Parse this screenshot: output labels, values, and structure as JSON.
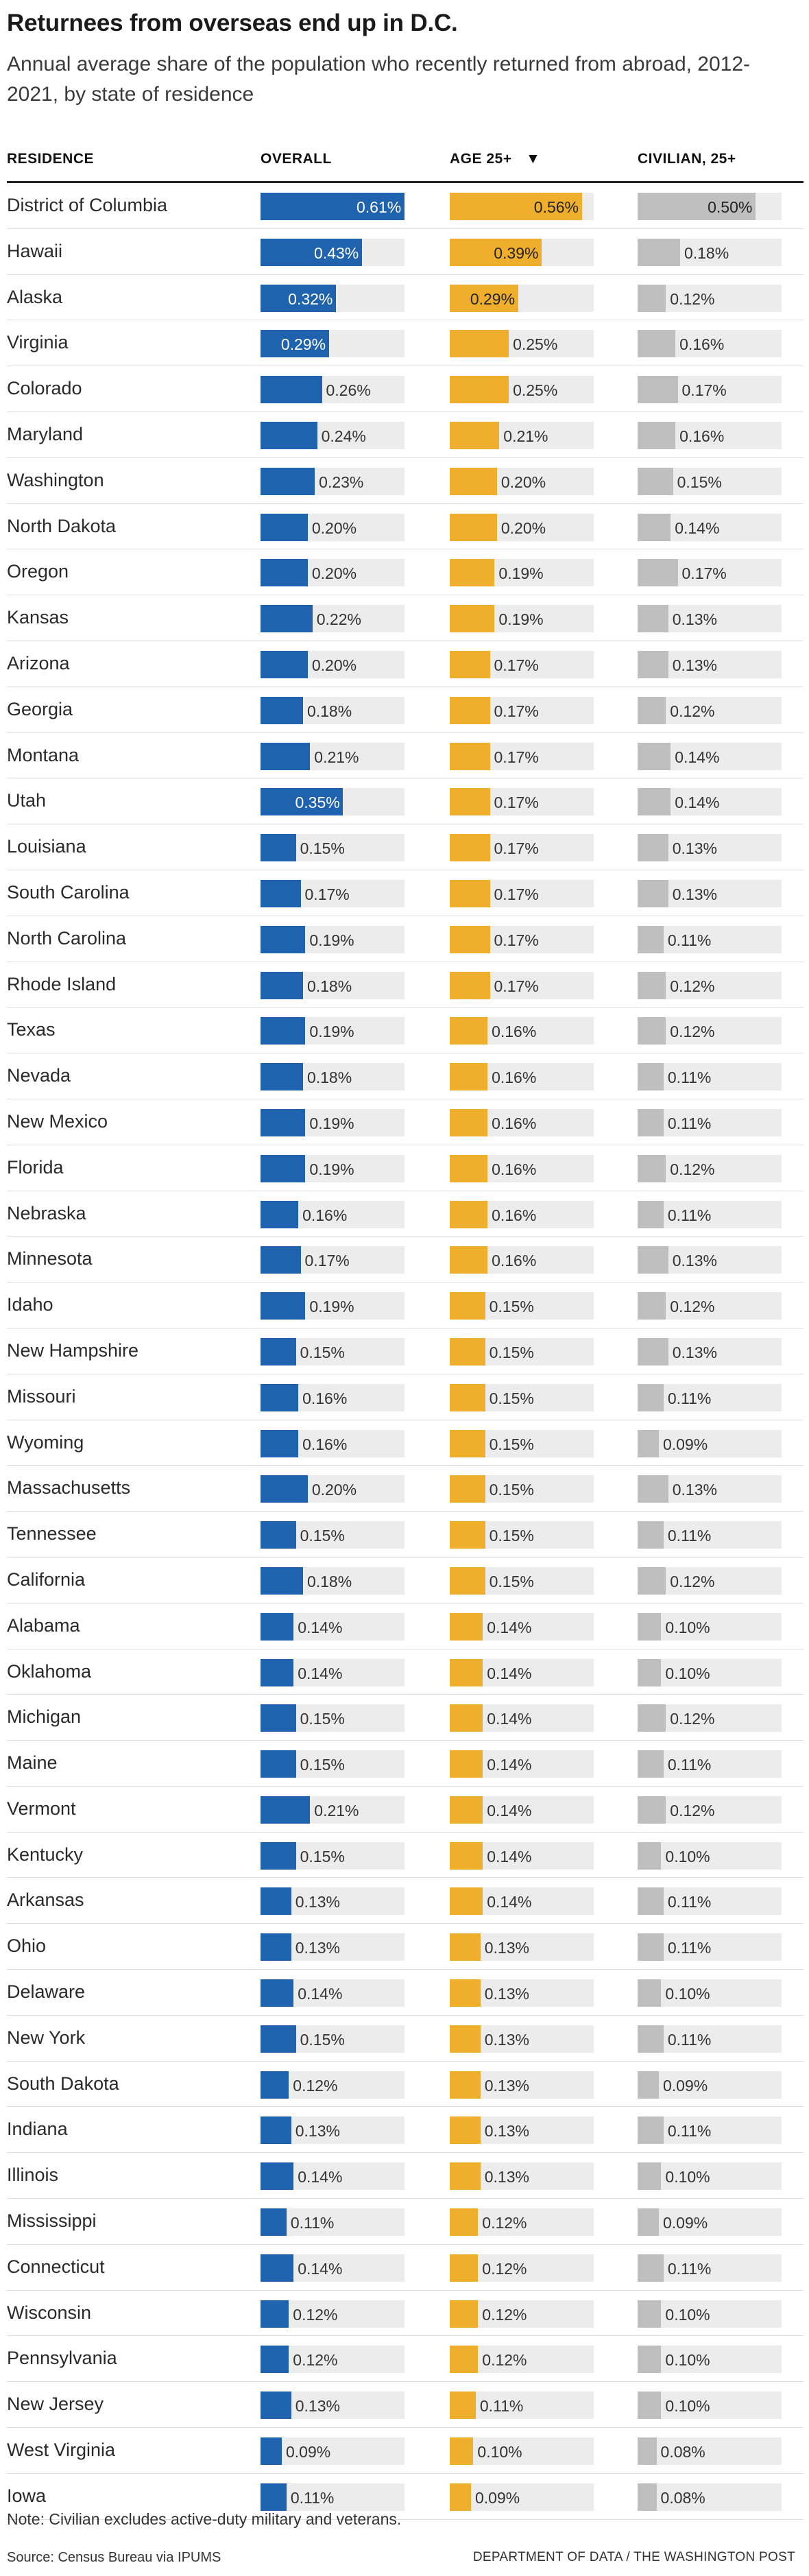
{
  "title": "Returnees from overseas end up in D.C.",
  "subtitle": "Annual average share of the population who recently returned from abroad, 2012-2021, by state of residence",
  "note": "Note: Civilian excludes active-duty military and veterans.",
  "source": "Source: Census Bureau via IPUMS",
  "credit": "DEPARTMENT OF DATA / THE WASHINGTON POST",
  "colors": {
    "overall": "#1f63ae",
    "age25": "#efaf2c",
    "civilian": "#bfbfbf",
    "track": "#ececec"
  },
  "chart_data": {
    "type": "bar",
    "layout": "table-of-horizontal-bars",
    "sorted_by": "AGE 25+",
    "sort_indicator": "down-triangle-icon",
    "columns": [
      "RESIDENCE",
      "OVERALL",
      "AGE 25+",
      "CIVILIAN, 25+"
    ],
    "unit": "%",
    "max_value": 0.61,
    "rows": [
      {
        "state": "District of Columbia",
        "overall": 0.61,
        "age25": 0.56,
        "civilian": 0.5
      },
      {
        "state": "Hawaii",
        "overall": 0.43,
        "age25": 0.39,
        "civilian": 0.18
      },
      {
        "state": "Alaska",
        "overall": 0.32,
        "age25": 0.29,
        "civilian": 0.12
      },
      {
        "state": "Virginia",
        "overall": 0.29,
        "age25": 0.25,
        "civilian": 0.16
      },
      {
        "state": "Colorado",
        "overall": 0.26,
        "age25": 0.25,
        "civilian": 0.17
      },
      {
        "state": "Maryland",
        "overall": 0.24,
        "age25": 0.21,
        "civilian": 0.16
      },
      {
        "state": "Washington",
        "overall": 0.23,
        "age25": 0.2,
        "civilian": 0.15
      },
      {
        "state": "North Dakota",
        "overall": 0.2,
        "age25": 0.2,
        "civilian": 0.14
      },
      {
        "state": "Oregon",
        "overall": 0.2,
        "age25": 0.19,
        "civilian": 0.17
      },
      {
        "state": "Kansas",
        "overall": 0.22,
        "age25": 0.19,
        "civilian": 0.13
      },
      {
        "state": "Arizona",
        "overall": 0.2,
        "age25": 0.17,
        "civilian": 0.13
      },
      {
        "state": "Georgia",
        "overall": 0.18,
        "age25": 0.17,
        "civilian": 0.12
      },
      {
        "state": "Montana",
        "overall": 0.21,
        "age25": 0.17,
        "civilian": 0.14
      },
      {
        "state": "Utah",
        "overall": 0.35,
        "age25": 0.17,
        "civilian": 0.14
      },
      {
        "state": "Louisiana",
        "overall": 0.15,
        "age25": 0.17,
        "civilian": 0.13
      },
      {
        "state": "South Carolina",
        "overall": 0.17,
        "age25": 0.17,
        "civilian": 0.13
      },
      {
        "state": "North Carolina",
        "overall": 0.19,
        "age25": 0.17,
        "civilian": 0.11
      },
      {
        "state": "Rhode Island",
        "overall": 0.18,
        "age25": 0.17,
        "civilian": 0.12
      },
      {
        "state": "Texas",
        "overall": 0.19,
        "age25": 0.16,
        "civilian": 0.12
      },
      {
        "state": "Nevada",
        "overall": 0.18,
        "age25": 0.16,
        "civilian": 0.11
      },
      {
        "state": "New Mexico",
        "overall": 0.19,
        "age25": 0.16,
        "civilian": 0.11
      },
      {
        "state": "Florida",
        "overall": 0.19,
        "age25": 0.16,
        "civilian": 0.12
      },
      {
        "state": "Nebraska",
        "overall": 0.16,
        "age25": 0.16,
        "civilian": 0.11
      },
      {
        "state": "Minnesota",
        "overall": 0.17,
        "age25": 0.16,
        "civilian": 0.13
      },
      {
        "state": "Idaho",
        "overall": 0.19,
        "age25": 0.15,
        "civilian": 0.12
      },
      {
        "state": "New Hampshire",
        "overall": 0.15,
        "age25": 0.15,
        "civilian": 0.13
      },
      {
        "state": "Missouri",
        "overall": 0.16,
        "age25": 0.15,
        "civilian": 0.11
      },
      {
        "state": "Wyoming",
        "overall": 0.16,
        "age25": 0.15,
        "civilian": 0.09
      },
      {
        "state": "Massachusetts",
        "overall": 0.2,
        "age25": 0.15,
        "civilian": 0.13
      },
      {
        "state": "Tennessee",
        "overall": 0.15,
        "age25": 0.15,
        "civilian": 0.11
      },
      {
        "state": "California",
        "overall": 0.18,
        "age25": 0.15,
        "civilian": 0.12
      },
      {
        "state": "Alabama",
        "overall": 0.14,
        "age25": 0.14,
        "civilian": 0.1
      },
      {
        "state": "Oklahoma",
        "overall": 0.14,
        "age25": 0.14,
        "civilian": 0.1
      },
      {
        "state": "Michigan",
        "overall": 0.15,
        "age25": 0.14,
        "civilian": 0.12
      },
      {
        "state": "Maine",
        "overall": 0.15,
        "age25": 0.14,
        "civilian": 0.11
      },
      {
        "state": "Vermont",
        "overall": 0.21,
        "age25": 0.14,
        "civilian": 0.12
      },
      {
        "state": "Kentucky",
        "overall": 0.15,
        "age25": 0.14,
        "civilian": 0.1
      },
      {
        "state": "Arkansas",
        "overall": 0.13,
        "age25": 0.14,
        "civilian": 0.11
      },
      {
        "state": "Ohio",
        "overall": 0.13,
        "age25": 0.13,
        "civilian": 0.11
      },
      {
        "state": "Delaware",
        "overall": 0.14,
        "age25": 0.13,
        "civilian": 0.1
      },
      {
        "state": "New York",
        "overall": 0.15,
        "age25": 0.13,
        "civilian": 0.11
      },
      {
        "state": "South Dakota",
        "overall": 0.12,
        "age25": 0.13,
        "civilian": 0.09
      },
      {
        "state": "Indiana",
        "overall": 0.13,
        "age25": 0.13,
        "civilian": 0.11
      },
      {
        "state": "Illinois",
        "overall": 0.14,
        "age25": 0.13,
        "civilian": 0.1
      },
      {
        "state": "Mississippi",
        "overall": 0.11,
        "age25": 0.12,
        "civilian": 0.09
      },
      {
        "state": "Connecticut",
        "overall": 0.14,
        "age25": 0.12,
        "civilian": 0.11
      },
      {
        "state": "Wisconsin",
        "overall": 0.12,
        "age25": 0.12,
        "civilian": 0.1
      },
      {
        "state": "Pennsylvania",
        "overall": 0.12,
        "age25": 0.12,
        "civilian": 0.1
      },
      {
        "state": "New Jersey",
        "overall": 0.13,
        "age25": 0.11,
        "civilian": 0.1
      },
      {
        "state": "West Virginia",
        "overall": 0.09,
        "age25": 0.1,
        "civilian": 0.08
      },
      {
        "state": "Iowa",
        "overall": 0.11,
        "age25": 0.09,
        "civilian": 0.08
      }
    ]
  }
}
